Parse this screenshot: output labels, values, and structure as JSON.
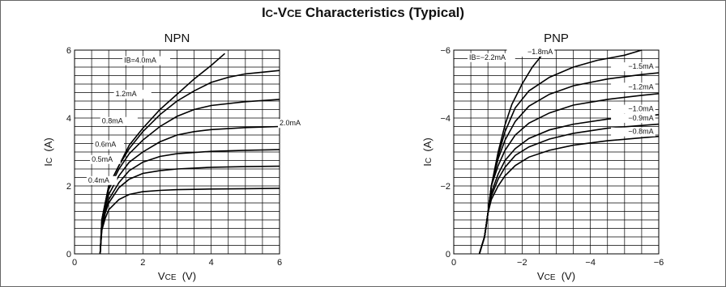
{
  "title_main": "I",
  "title_sub": "C",
  "title_mid": "-V",
  "title_sub2": "CE",
  "title_rest": " Characteristics (Typical)",
  "chart_data": [
    {
      "type": "line",
      "title": "NPN",
      "xlabel": "VCE (V)",
      "ylabel": "IC (A)",
      "xlim": [
        0,
        6
      ],
      "ylim": [
        0,
        6
      ],
      "x_ticks": [
        "0",
        "2",
        "4",
        "6"
      ],
      "y_ticks": [
        "0",
        "2",
        "4",
        "6"
      ],
      "grid": true,
      "series": [
        {
          "name": "IB=4.0mA",
          "points": [
            [
              0.75,
              0
            ],
            [
              0.8,
              1.0
            ],
            [
              0.9,
              1.5
            ],
            [
              1.0,
              2.0
            ],
            [
              1.3,
              2.6
            ],
            [
              1.6,
              3.2
            ],
            [
              2,
              3.7
            ],
            [
              2.5,
              4.25
            ],
            [
              3,
              4.7
            ],
            [
              3.5,
              5.15
            ],
            [
              4,
              5.55
            ],
            [
              4.4,
              5.9
            ]
          ]
        },
        {
          "name": "2.0mA",
          "points": [
            [
              0.75,
              0
            ],
            [
              0.8,
              1.0
            ],
            [
              0.9,
              1.5
            ],
            [
              1.0,
              2.0
            ],
            [
              1.3,
              2.6
            ],
            [
              1.6,
              3.1
            ],
            [
              2,
              3.6
            ],
            [
              2.5,
              4.1
            ],
            [
              3,
              4.5
            ],
            [
              3.5,
              4.8
            ],
            [
              4,
              5.05
            ],
            [
              4.5,
              5.2
            ],
            [
              5,
              5.3
            ],
            [
              6,
              5.4
            ]
          ]
        },
        {
          "name": "1.2mA",
          "points": [
            [
              0.75,
              0
            ],
            [
              0.8,
              1.0
            ],
            [
              0.9,
              1.5
            ],
            [
              1.0,
              1.9
            ],
            [
              1.3,
              2.5
            ],
            [
              1.6,
              2.95
            ],
            [
              2,
              3.35
            ],
            [
              2.5,
              3.75
            ],
            [
              3,
              4.05
            ],
            [
              3.5,
              4.25
            ],
            [
              4,
              4.37
            ],
            [
              5,
              4.48
            ],
            [
              6,
              4.55
            ]
          ]
        },
        {
          "name": "0.8mA",
          "points": [
            [
              0.75,
              0
            ],
            [
              0.8,
              0.9
            ],
            [
              0.9,
              1.4
            ],
            [
              1.0,
              1.75
            ],
            [
              1.3,
              2.3
            ],
            [
              1.6,
              2.7
            ],
            [
              2,
              3.0
            ],
            [
              2.5,
              3.3
            ],
            [
              3,
              3.5
            ],
            [
              3.5,
              3.6
            ],
            [
              4,
              3.66
            ],
            [
              5,
              3.72
            ],
            [
              6,
              3.75
            ]
          ]
        },
        {
          "name": "0.6mA",
          "points": [
            [
              0.75,
              0
            ],
            [
              0.8,
              0.8
            ],
            [
              0.9,
              1.3
            ],
            [
              1.0,
              1.6
            ],
            [
              1.3,
              2.1
            ],
            [
              1.6,
              2.45
            ],
            [
              2,
              2.7
            ],
            [
              2.5,
              2.87
            ],
            [
              3,
              2.95
            ],
            [
              4,
              3.02
            ],
            [
              5,
              3.05
            ],
            [
              6,
              3.07
            ]
          ]
        },
        {
          "name": "0.5mA",
          "points": [
            [
              0.75,
              0
            ],
            [
              0.8,
              0.75
            ],
            [
              0.9,
              1.2
            ],
            [
              1.0,
              1.5
            ],
            [
              1.3,
              1.95
            ],
            [
              1.6,
              2.2
            ],
            [
              2,
              2.37
            ],
            [
              2.5,
              2.45
            ],
            [
              3,
              2.5
            ],
            [
              4,
              2.55
            ],
            [
              5,
              2.57
            ],
            [
              6,
              2.58
            ]
          ]
        },
        {
          "name": "0.4mA",
          "points": [
            [
              0.75,
              0
            ],
            [
              0.8,
              0.7
            ],
            [
              0.9,
              1.05
            ],
            [
              1.0,
              1.3
            ],
            [
              1.3,
              1.6
            ],
            [
              1.6,
              1.75
            ],
            [
              2,
              1.83
            ],
            [
              2.5,
              1.87
            ],
            [
              3,
              1.89
            ],
            [
              4,
              1.91
            ],
            [
              5,
              1.92
            ],
            [
              6,
              1.93
            ]
          ]
        }
      ]
    },
    {
      "type": "line",
      "title": "PNP",
      "xlabel": "VCE (V)",
      "ylabel": "IC (A)",
      "xlim": [
        0,
        -6
      ],
      "ylim": [
        0,
        -6
      ],
      "x_ticks": [
        "0",
        "−2",
        "−4",
        "−6"
      ],
      "y_ticks": [
        "0",
        "−2",
        "−4",
        "−6"
      ],
      "grid": true,
      "series": [
        {
          "name": "IB=−2.2mA",
          "points": [
            [
              -0.75,
              0
            ],
            [
              -0.9,
              -0.5
            ],
            [
              -1.0,
              -1.2
            ],
            [
              -1.1,
              -2.0
            ],
            [
              -1.3,
              -3.0
            ],
            [
              -1.5,
              -3.8
            ],
            [
              -1.7,
              -4.4
            ],
            [
              -2,
              -5.0
            ],
            [
              -2.3,
              -5.5
            ],
            [
              -2.7,
              -6.0
            ]
          ]
        },
        {
          "name": "−1.8mA",
          "points": [
            [
              -0.75,
              0
            ],
            [
              -0.9,
              -0.5
            ],
            [
              -1.0,
              -1.2
            ],
            [
              -1.1,
              -2.0
            ],
            [
              -1.3,
              -2.9
            ],
            [
              -1.5,
              -3.6
            ],
            [
              -1.8,
              -4.3
            ],
            [
              -2.2,
              -4.8
            ],
            [
              -2.8,
              -5.2
            ],
            [
              -3.5,
              -5.5
            ],
            [
              -4.2,
              -5.7
            ],
            [
              -5,
              -5.85
            ],
            [
              -5.5,
              -6.0
            ]
          ]
        },
        {
          "name": "−1.5mA",
          "points": [
            [
              -0.75,
              0
            ],
            [
              -0.9,
              -0.5
            ],
            [
              -1.0,
              -1.2
            ],
            [
              -1.1,
              -2.0
            ],
            [
              -1.3,
              -2.8
            ],
            [
              -1.5,
              -3.35
            ],
            [
              -1.8,
              -3.9
            ],
            [
              -2.2,
              -4.35
            ],
            [
              -2.8,
              -4.7
            ],
            [
              -3.5,
              -4.95
            ],
            [
              -4.5,
              -5.15
            ],
            [
              -5.5,
              -5.28
            ],
            [
              -6,
              -5.33
            ]
          ]
        },
        {
          "name": "−1.2mA",
          "points": [
            [
              -0.75,
              0
            ],
            [
              -0.9,
              -0.5
            ],
            [
              -1.0,
              -1.2
            ],
            [
              -1.1,
              -2.0
            ],
            [
              -1.3,
              -2.6
            ],
            [
              -1.5,
              -3.05
            ],
            [
              -1.8,
              -3.5
            ],
            [
              -2.2,
              -3.85
            ],
            [
              -2.8,
              -4.15
            ],
            [
              -3.5,
              -4.38
            ],
            [
              -4.5,
              -4.55
            ],
            [
              -5.5,
              -4.67
            ],
            [
              -6,
              -4.72
            ]
          ]
        },
        {
          "name": "−1.0mA",
          "points": [
            [
              -0.75,
              0
            ],
            [
              -0.9,
              -0.5
            ],
            [
              -1.0,
              -1.2
            ],
            [
              -1.1,
              -1.8
            ],
            [
              -1.3,
              -2.35
            ],
            [
              -1.5,
              -2.75
            ],
            [
              -1.8,
              -3.1
            ],
            [
              -2.2,
              -3.4
            ],
            [
              -2.8,
              -3.65
            ],
            [
              -3.5,
              -3.82
            ],
            [
              -4.5,
              -3.97
            ],
            [
              -5.5,
              -4.05
            ],
            [
              -6,
              -4.1
            ]
          ]
        },
        {
          "name": "−0.9mA",
          "points": [
            [
              -0.75,
              0
            ],
            [
              -0.9,
              -0.5
            ],
            [
              -1.0,
              -1.2
            ],
            [
              -1.1,
              -1.7
            ],
            [
              -1.3,
              -2.2
            ],
            [
              -1.5,
              -2.55
            ],
            [
              -1.8,
              -2.9
            ],
            [
              -2.2,
              -3.15
            ],
            [
              -2.8,
              -3.38
            ],
            [
              -3.5,
              -3.55
            ],
            [
              -4.5,
              -3.7
            ],
            [
              -5.5,
              -3.78
            ],
            [
              -6,
              -3.82
            ]
          ]
        },
        {
          "name": "−0.8mA",
          "points": [
            [
              -0.75,
              0
            ],
            [
              -0.9,
              -0.5
            ],
            [
              -1.0,
              -1.2
            ],
            [
              -1.1,
              -1.6
            ],
            [
              -1.3,
              -2.0
            ],
            [
              -1.5,
              -2.3
            ],
            [
              -1.8,
              -2.6
            ],
            [
              -2.2,
              -2.85
            ],
            [
              -2.8,
              -3.05
            ],
            [
              -3.5,
              -3.2
            ],
            [
              -4.5,
              -3.33
            ],
            [
              -5.5,
              -3.42
            ],
            [
              -6,
              -3.46
            ]
          ]
        }
      ]
    }
  ]
}
